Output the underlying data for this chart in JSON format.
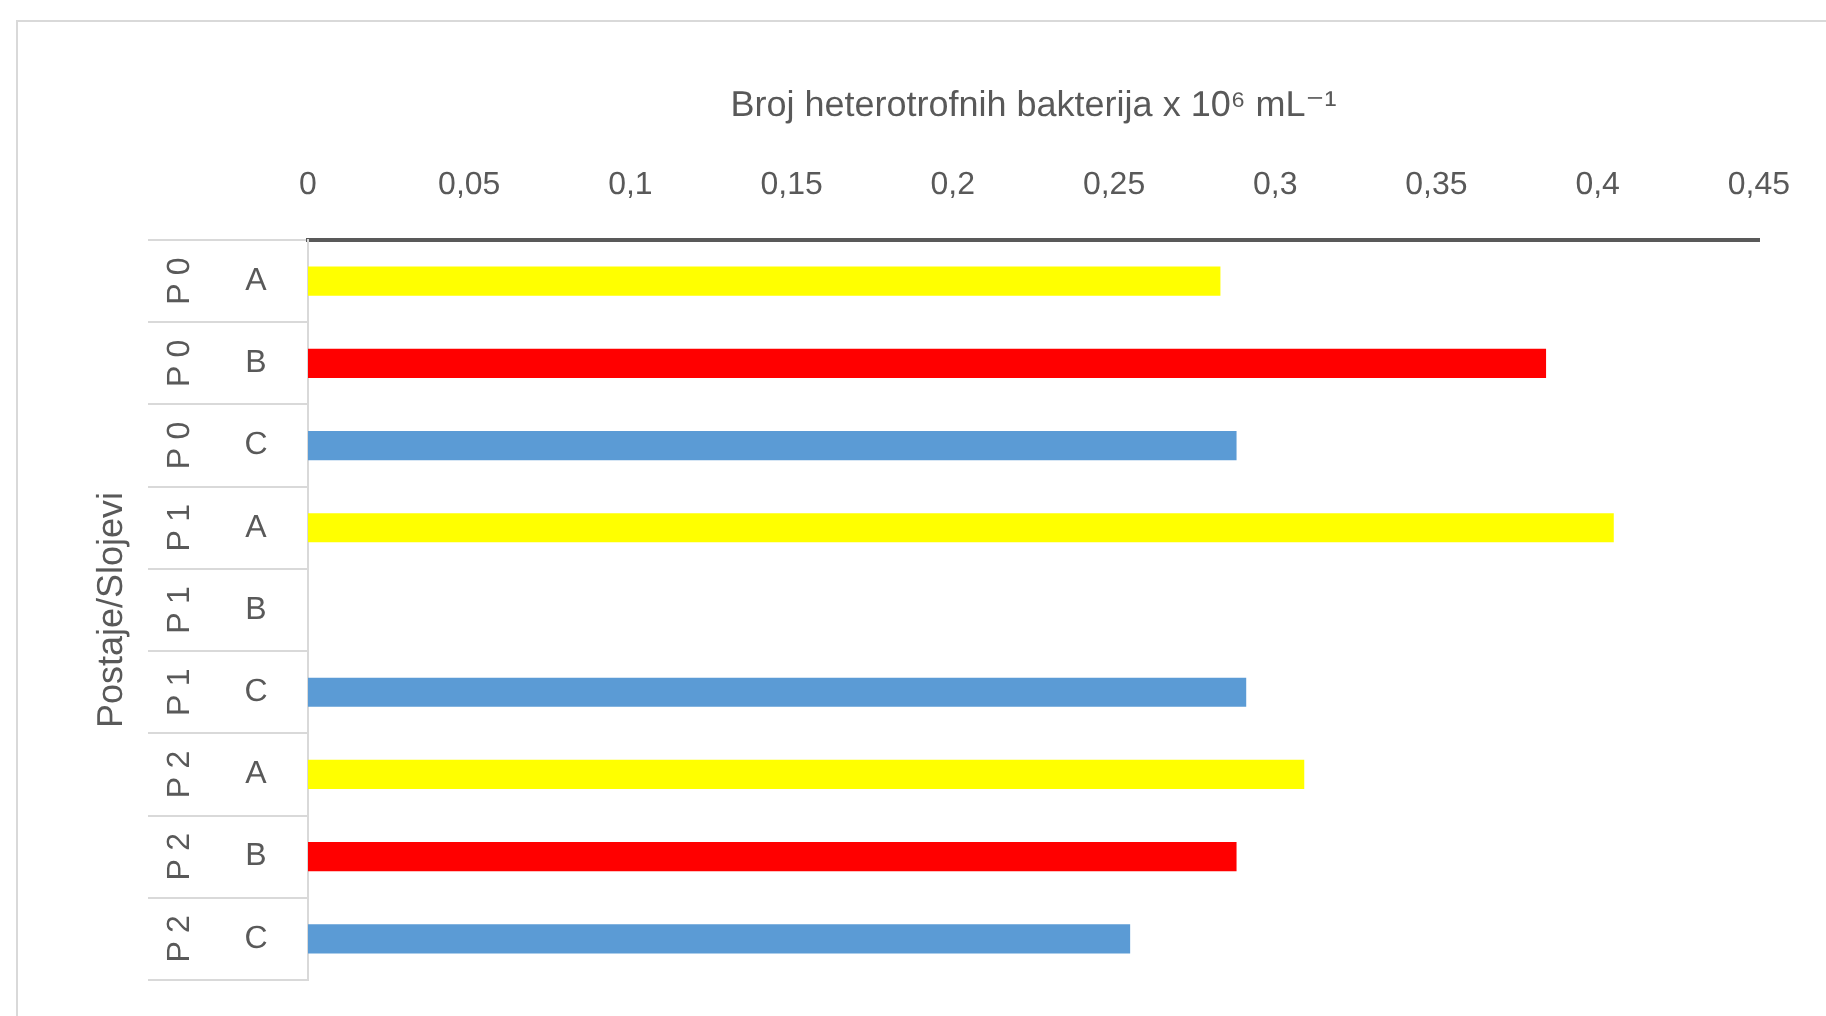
{
  "chart_data": {
    "type": "bar",
    "orientation": "horizontal",
    "xlabel": "Broj heterotrofnih bakterija x 10⁶ mL⁻¹",
    "ylabel": "Postaje/Slojevi",
    "categories": [
      "P 0 A",
      "P 0 B",
      "P 0 C",
      "P 1 A",
      "P 1 B",
      "P 1 C",
      "P 2 A",
      "P 2 B",
      "P 2 C"
    ],
    "values": [
      0.283,
      0.384,
      0.288,
      0.405,
      null,
      0.291,
      0.309,
      0.288,
      0.255
    ],
    "colors": [
      "#ffff00",
      "#ff0000",
      "#5b9bd5",
      "#ffff00",
      null,
      "#5b9bd5",
      "#ffff00",
      "#ff0000",
      "#5b9bd5"
    ],
    "xlim": [
      0,
      0.45
    ],
    "xticks": [
      0,
      {
        "value": 0.05,
        "label": "0,05"
      },
      {
        "value": 0.1,
        "label": "0,1"
      },
      {
        "value": 0.15,
        "label": "0,15"
      },
      {
        "value": 0.2,
        "label": "0,2"
      },
      {
        "value": 0.25,
        "label": "0,25"
      },
      {
        "value": 0.3,
        "label": "0,3"
      },
      {
        "value": 0.35,
        "label": "0,35"
      },
      {
        "value": 0.4,
        "label": "0,4"
      },
      {
        "value": 0.45,
        "label": "0,45"
      }
    ]
  }
}
